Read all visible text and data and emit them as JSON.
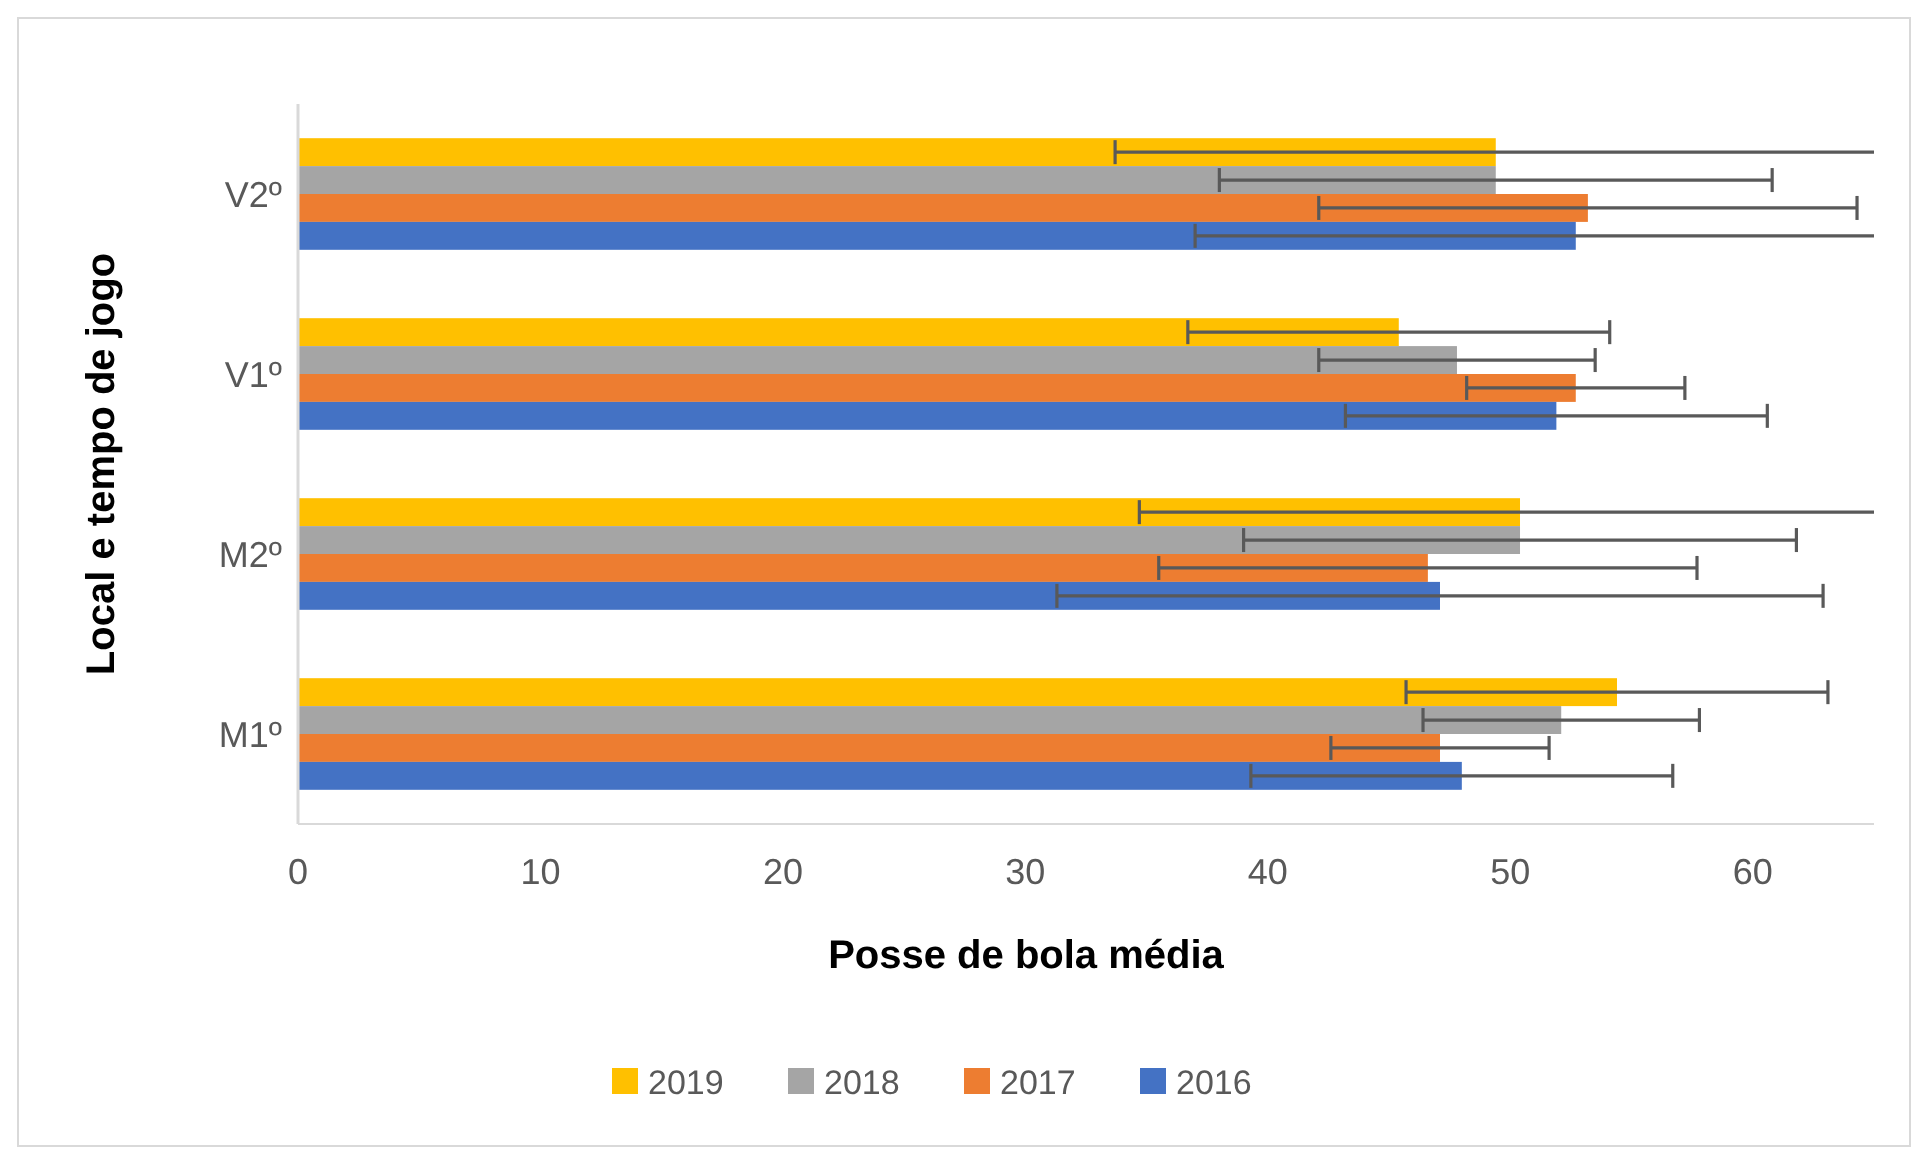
{
  "chart_data": {
    "type": "bar",
    "orientation": "horizontal",
    "xlabel": "Posse de bola média",
    "ylabel": "Local e tempo de jogo",
    "categories": [
      "V2º",
      "V1º",
      "M2º",
      "M1º"
    ],
    "xlim": [
      0,
      65
    ],
    "xticks": [
      0,
      10,
      20,
      30,
      40,
      50,
      60
    ],
    "grid": false,
    "legend": "bottom",
    "series": [
      {
        "name": "2019",
        "color": "#ffc000",
        "values": [
          49.4,
          45.4,
          50.4,
          54.4
        ],
        "errors": [
          [
            33.7,
            65
          ],
          8.7,
          [
            34.7,
            65
          ],
          8.7
        ]
      },
      {
        "name": "2018",
        "color": "#a5a5a5",
        "values": [
          49.4,
          47.8,
          50.4,
          52.1
        ],
        "errors": [
          11.4,
          5.7,
          11.4,
          5.7
        ]
      },
      {
        "name": "2017",
        "color": "#ed7d31",
        "values": [
          53.2,
          52.7,
          46.6,
          47.1
        ],
        "errors": [
          11.1,
          4.5,
          11.1,
          4.5
        ]
      },
      {
        "name": "2016",
        "color": "#4472c4",
        "values": [
          52.7,
          51.9,
          47.1,
          48.0
        ],
        "errors": [
          [
            37.0,
            65
          ],
          8.7,
          15.8,
          8.7
        ]
      }
    ]
  }
}
